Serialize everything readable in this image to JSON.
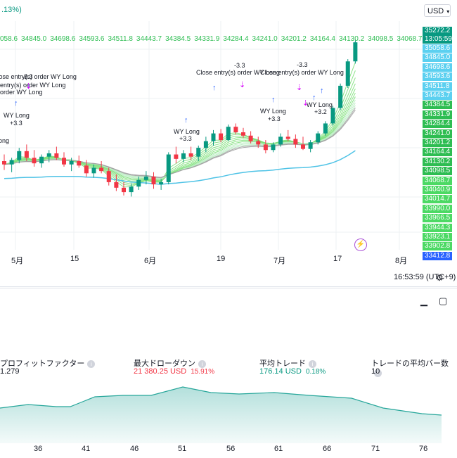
{
  "header": {
    "pct_change": ".13%)",
    "currency": "USD"
  },
  "price_axis": {
    "current_price": "35272.2",
    "countdown": "13:05:59",
    "labels": [
      "35058.6",
      "34845.0",
      "34698.6",
      "34593.6",
      "34511.8",
      "34443.7",
      "34384.5",
      "34331.9",
      "34284.4",
      "34241.0",
      "34201.2",
      "34164.4",
      "34130.2",
      "34098.5",
      "34068.7",
      "34040.9",
      "34014.7",
      "33990.0",
      "33966.5",
      "33944.3",
      "33923.1",
      "33902.8",
      "33412.8"
    ]
  },
  "level_row": [
    "058.6",
    "34845.0",
    "34698.6",
    "34593.6",
    "34511.8",
    "34443.7",
    "34384.5",
    "34331.9",
    "34284.4",
    "34241.0",
    "34201.2",
    "34164.4",
    "34130.2",
    "34098.5",
    "34068.7"
  ],
  "x_axis": {
    "ticks": [
      "5月",
      "15",
      "6月",
      "19",
      "7月",
      "17",
      "8月"
    ]
  },
  "time_readout": "16:53:59 (UTC+9)",
  "annotations": [
    {
      "text": "-3.3"
    },
    {
      "text": "entry(s) order WY Long"
    },
    {
      "text": "Close entry(s) order WY Long"
    },
    {
      "text": "order WY Long"
    },
    {
      "text": "WY Long"
    },
    {
      "text": "+3.3"
    },
    {
      "text": "ong"
    },
    {
      "text": "WY Long"
    },
    {
      "text": "+3.3"
    },
    {
      "text": "-3.3"
    },
    {
      "text": "Close entry(s) order WY Long"
    },
    {
      "text": "-3.3"
    },
    {
      "text": "Close entry(s) order WY Long"
    },
    {
      "text": "WY Long"
    },
    {
      "text": "+3.3"
    },
    {
      "text": "WY Long"
    },
    {
      "text": "+3.2"
    }
  ],
  "stats": [
    {
      "label": "プロフィットファクター",
      "value": "1.279",
      "value2": ""
    },
    {
      "label": "最大ドローダウン",
      "value": "21 380.25 USD",
      "value2": "15.91%"
    },
    {
      "label": "平均トレード",
      "value": "176.14 USD",
      "value2": "0.18%"
    },
    {
      "label": "トレードの平均バー数",
      "value": "10",
      "value2": ""
    }
  ],
  "bottom_axis": {
    "ticks": [
      "36",
      "41",
      "46",
      "51",
      "56",
      "61",
      "66",
      "71",
      "76"
    ]
  },
  "colors": {
    "up": "#089981",
    "down": "#f23645",
    "ma_green": "#2ebd52",
    "long_line": "#4fc3e6",
    "neg": "#f23645",
    "pos": "#089981",
    "area": "#26a69a"
  },
  "chart_data": {
    "type": "candlestick",
    "price_ylim": [
      33400,
      35400
    ],
    "candles": [
      {
        "o": 34200,
        "h": 34260,
        "l": 34120,
        "c": 34170
      },
      {
        "o": 34170,
        "h": 34230,
        "l": 34100,
        "c": 34210
      },
      {
        "o": 34210,
        "h": 34320,
        "l": 34180,
        "c": 34290
      },
      {
        "o": 34290,
        "h": 34350,
        "l": 34200,
        "c": 34230
      },
      {
        "o": 34230,
        "h": 34300,
        "l": 34150,
        "c": 34180
      },
      {
        "o": 34180,
        "h": 34260,
        "l": 34140,
        "c": 34240
      },
      {
        "o": 34240,
        "h": 34300,
        "l": 34190,
        "c": 34270
      },
      {
        "o": 34270,
        "h": 34330,
        "l": 34210,
        "c": 34230
      },
      {
        "o": 34230,
        "h": 34280,
        "l": 34150,
        "c": 34170
      },
      {
        "o": 34170,
        "h": 34230,
        "l": 34110,
        "c": 34200
      },
      {
        "o": 34200,
        "h": 34250,
        "l": 34140,
        "c": 34160
      },
      {
        "o": 34160,
        "h": 34210,
        "l": 34060,
        "c": 34090
      },
      {
        "o": 34090,
        "h": 34170,
        "l": 34050,
        "c": 34140
      },
      {
        "o": 34140,
        "h": 34200,
        "l": 34090,
        "c": 34110
      },
      {
        "o": 34110,
        "h": 34140,
        "l": 33980,
        "c": 34010
      },
      {
        "o": 34010,
        "h": 34080,
        "l": 33930,
        "c": 33960
      },
      {
        "o": 33960,
        "h": 34010,
        "l": 33890,
        "c": 33920
      },
      {
        "o": 33920,
        "h": 34000,
        "l": 33880,
        "c": 33970
      },
      {
        "o": 33970,
        "h": 34060,
        "l": 33940,
        "c": 34030
      },
      {
        "o": 34030,
        "h": 34110,
        "l": 33990,
        "c": 34060
      },
      {
        "o": 34060,
        "h": 34100,
        "l": 33950,
        "c": 33990
      },
      {
        "o": 33990,
        "h": 34040,
        "l": 33940,
        "c": 34010
      },
      {
        "o": 34010,
        "h": 34280,
        "l": 33990,
        "c": 34260
      },
      {
        "o": 34260,
        "h": 34330,
        "l": 34180,
        "c": 34220
      },
      {
        "o": 34220,
        "h": 34300,
        "l": 34190,
        "c": 34270
      },
      {
        "o": 34270,
        "h": 34330,
        "l": 34210,
        "c": 34240
      },
      {
        "o": 34240,
        "h": 34340,
        "l": 34200,
        "c": 34320
      },
      {
        "o": 34320,
        "h": 34420,
        "l": 34280,
        "c": 34380
      },
      {
        "o": 34380,
        "h": 34480,
        "l": 34340,
        "c": 34450
      },
      {
        "o": 34450,
        "h": 34490,
        "l": 34370,
        "c": 34390
      },
      {
        "o": 34390,
        "h": 34530,
        "l": 34380,
        "c": 34510
      },
      {
        "o": 34510,
        "h": 34540,
        "l": 34440,
        "c": 34460
      },
      {
        "o": 34460,
        "h": 34500,
        "l": 34410,
        "c": 34430
      },
      {
        "o": 34430,
        "h": 34470,
        "l": 34360,
        "c": 34380
      },
      {
        "o": 34380,
        "h": 34420,
        "l": 34320,
        "c": 34350
      },
      {
        "o": 34350,
        "h": 34390,
        "l": 34270,
        "c": 34300
      },
      {
        "o": 34300,
        "h": 34370,
        "l": 34280,
        "c": 34350
      },
      {
        "o": 34350,
        "h": 34450,
        "l": 34330,
        "c": 34420
      },
      {
        "o": 34420,
        "h": 34480,
        "l": 34380,
        "c": 34400
      },
      {
        "o": 34400,
        "h": 34440,
        "l": 34320,
        "c": 34350
      },
      {
        "o": 34350,
        "h": 34420,
        "l": 34300,
        "c": 34310
      },
      {
        "o": 34310,
        "h": 34390,
        "l": 34280,
        "c": 34370
      },
      {
        "o": 34370,
        "h": 34470,
        "l": 34350,
        "c": 34450
      },
      {
        "o": 34450,
        "h": 34560,
        "l": 34430,
        "c": 34540
      },
      {
        "o": 34540,
        "h": 34700,
        "l": 34520,
        "c": 34680
      },
      {
        "o": 34680,
        "h": 34900,
        "l": 34660,
        "c": 34880
      },
      {
        "o": 34880,
        "h": 35120,
        "l": 34860,
        "c": 35100
      },
      {
        "o": 35100,
        "h": 35290,
        "l": 35080,
        "c": 35272
      }
    ],
    "stats_area": {
      "x": [
        36,
        41,
        46,
        51,
        56,
        61,
        66,
        71,
        76
      ],
      "values": [
        62,
        58,
        60,
        70,
        62,
        65,
        60,
        40,
        28
      ]
    }
  }
}
